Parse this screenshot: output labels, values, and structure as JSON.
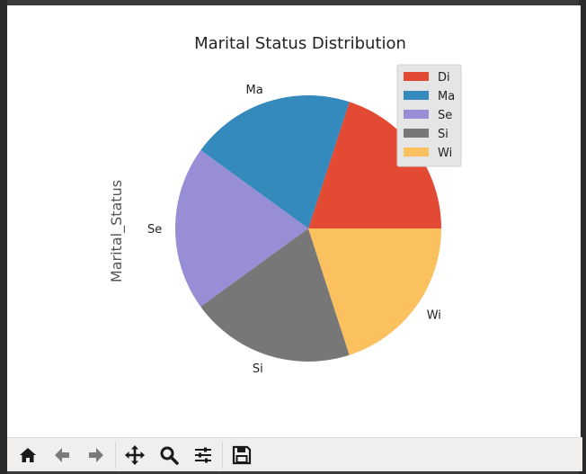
{
  "chart_data": {
    "type": "pie",
    "title": "Marital Status Distribution",
    "ylabel": "Marital_Status",
    "categories": [
      "Di",
      "Ma",
      "Se",
      "Si",
      "Wi"
    ],
    "values": [
      20,
      20,
      20,
      20,
      20
    ],
    "colors": [
      "#E24A33",
      "#348ABD",
      "#988ED5",
      "#777777",
      "#FBC15E"
    ],
    "legend": [
      "Di",
      "Ma",
      "Se",
      "Si",
      "Wi"
    ],
    "legend_position": "top-right",
    "start_angle_deg": 0,
    "direction": "counterclockwise"
  },
  "toolbar": {
    "icons": [
      "home-icon",
      "back-arrow-icon",
      "forward-arrow-icon",
      "pan-icon",
      "zoom-icon",
      "configure-subplots-icon",
      "save-icon"
    ]
  }
}
